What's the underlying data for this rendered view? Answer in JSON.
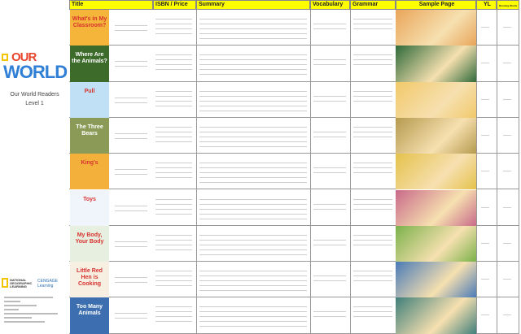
{
  "left_panel": {
    "logo": {
      "brand": "NATIONAL GEOGRAPHIC",
      "line1": "OUR",
      "line2": "WORLD"
    },
    "series": "Our World Readers",
    "level": "Level 1",
    "publisher": {
      "ng": "NATIONAL GEOGRAPHIC LEARNING",
      "cengage": "CENGAGE Learning"
    }
  },
  "headers": {
    "title": "Title",
    "isbn": "ISBN / Price",
    "summary": "Summary",
    "vocabulary": "Vocabulary",
    "grammar": "Grammar",
    "sample": "Sample Page",
    "yl": "YL",
    "words": "Running Words"
  },
  "books": [
    {
      "cover_title": "What's in My Classroom?",
      "cover_color": "#f5b43a",
      "sample_color": "#e9a55a"
    },
    {
      "cover_title": "Where Are the Animals?",
      "cover_color": "#3d6b2a",
      "sample_color": "#2f6a3a"
    },
    {
      "cover_title": "Pull",
      "cover_color": "#bfe0f5",
      "sample_color": "#f2c96a"
    },
    {
      "cover_title": "The Three Bears",
      "cover_color": "#8c9a58",
      "sample_color": "#b59a4e"
    },
    {
      "cover_title": "King's",
      "cover_color": "#f3b13b",
      "sample_color": "#e5c24c"
    },
    {
      "cover_title": "Toys",
      "cover_color": "#f0f4fb",
      "sample_color": "#c96a8a"
    },
    {
      "cover_title": "My Body, Your Body",
      "cover_color": "#e7efe0",
      "sample_color": "#7bb24a"
    },
    {
      "cover_title": "Little Red Hen is Cooking",
      "cover_color": "#f7efe2",
      "sample_color": "#4a7bb8"
    },
    {
      "cover_title": "Too Many Animals",
      "cover_color": "#3d6fb0",
      "sample_color": "#3f7f7a"
    }
  ]
}
